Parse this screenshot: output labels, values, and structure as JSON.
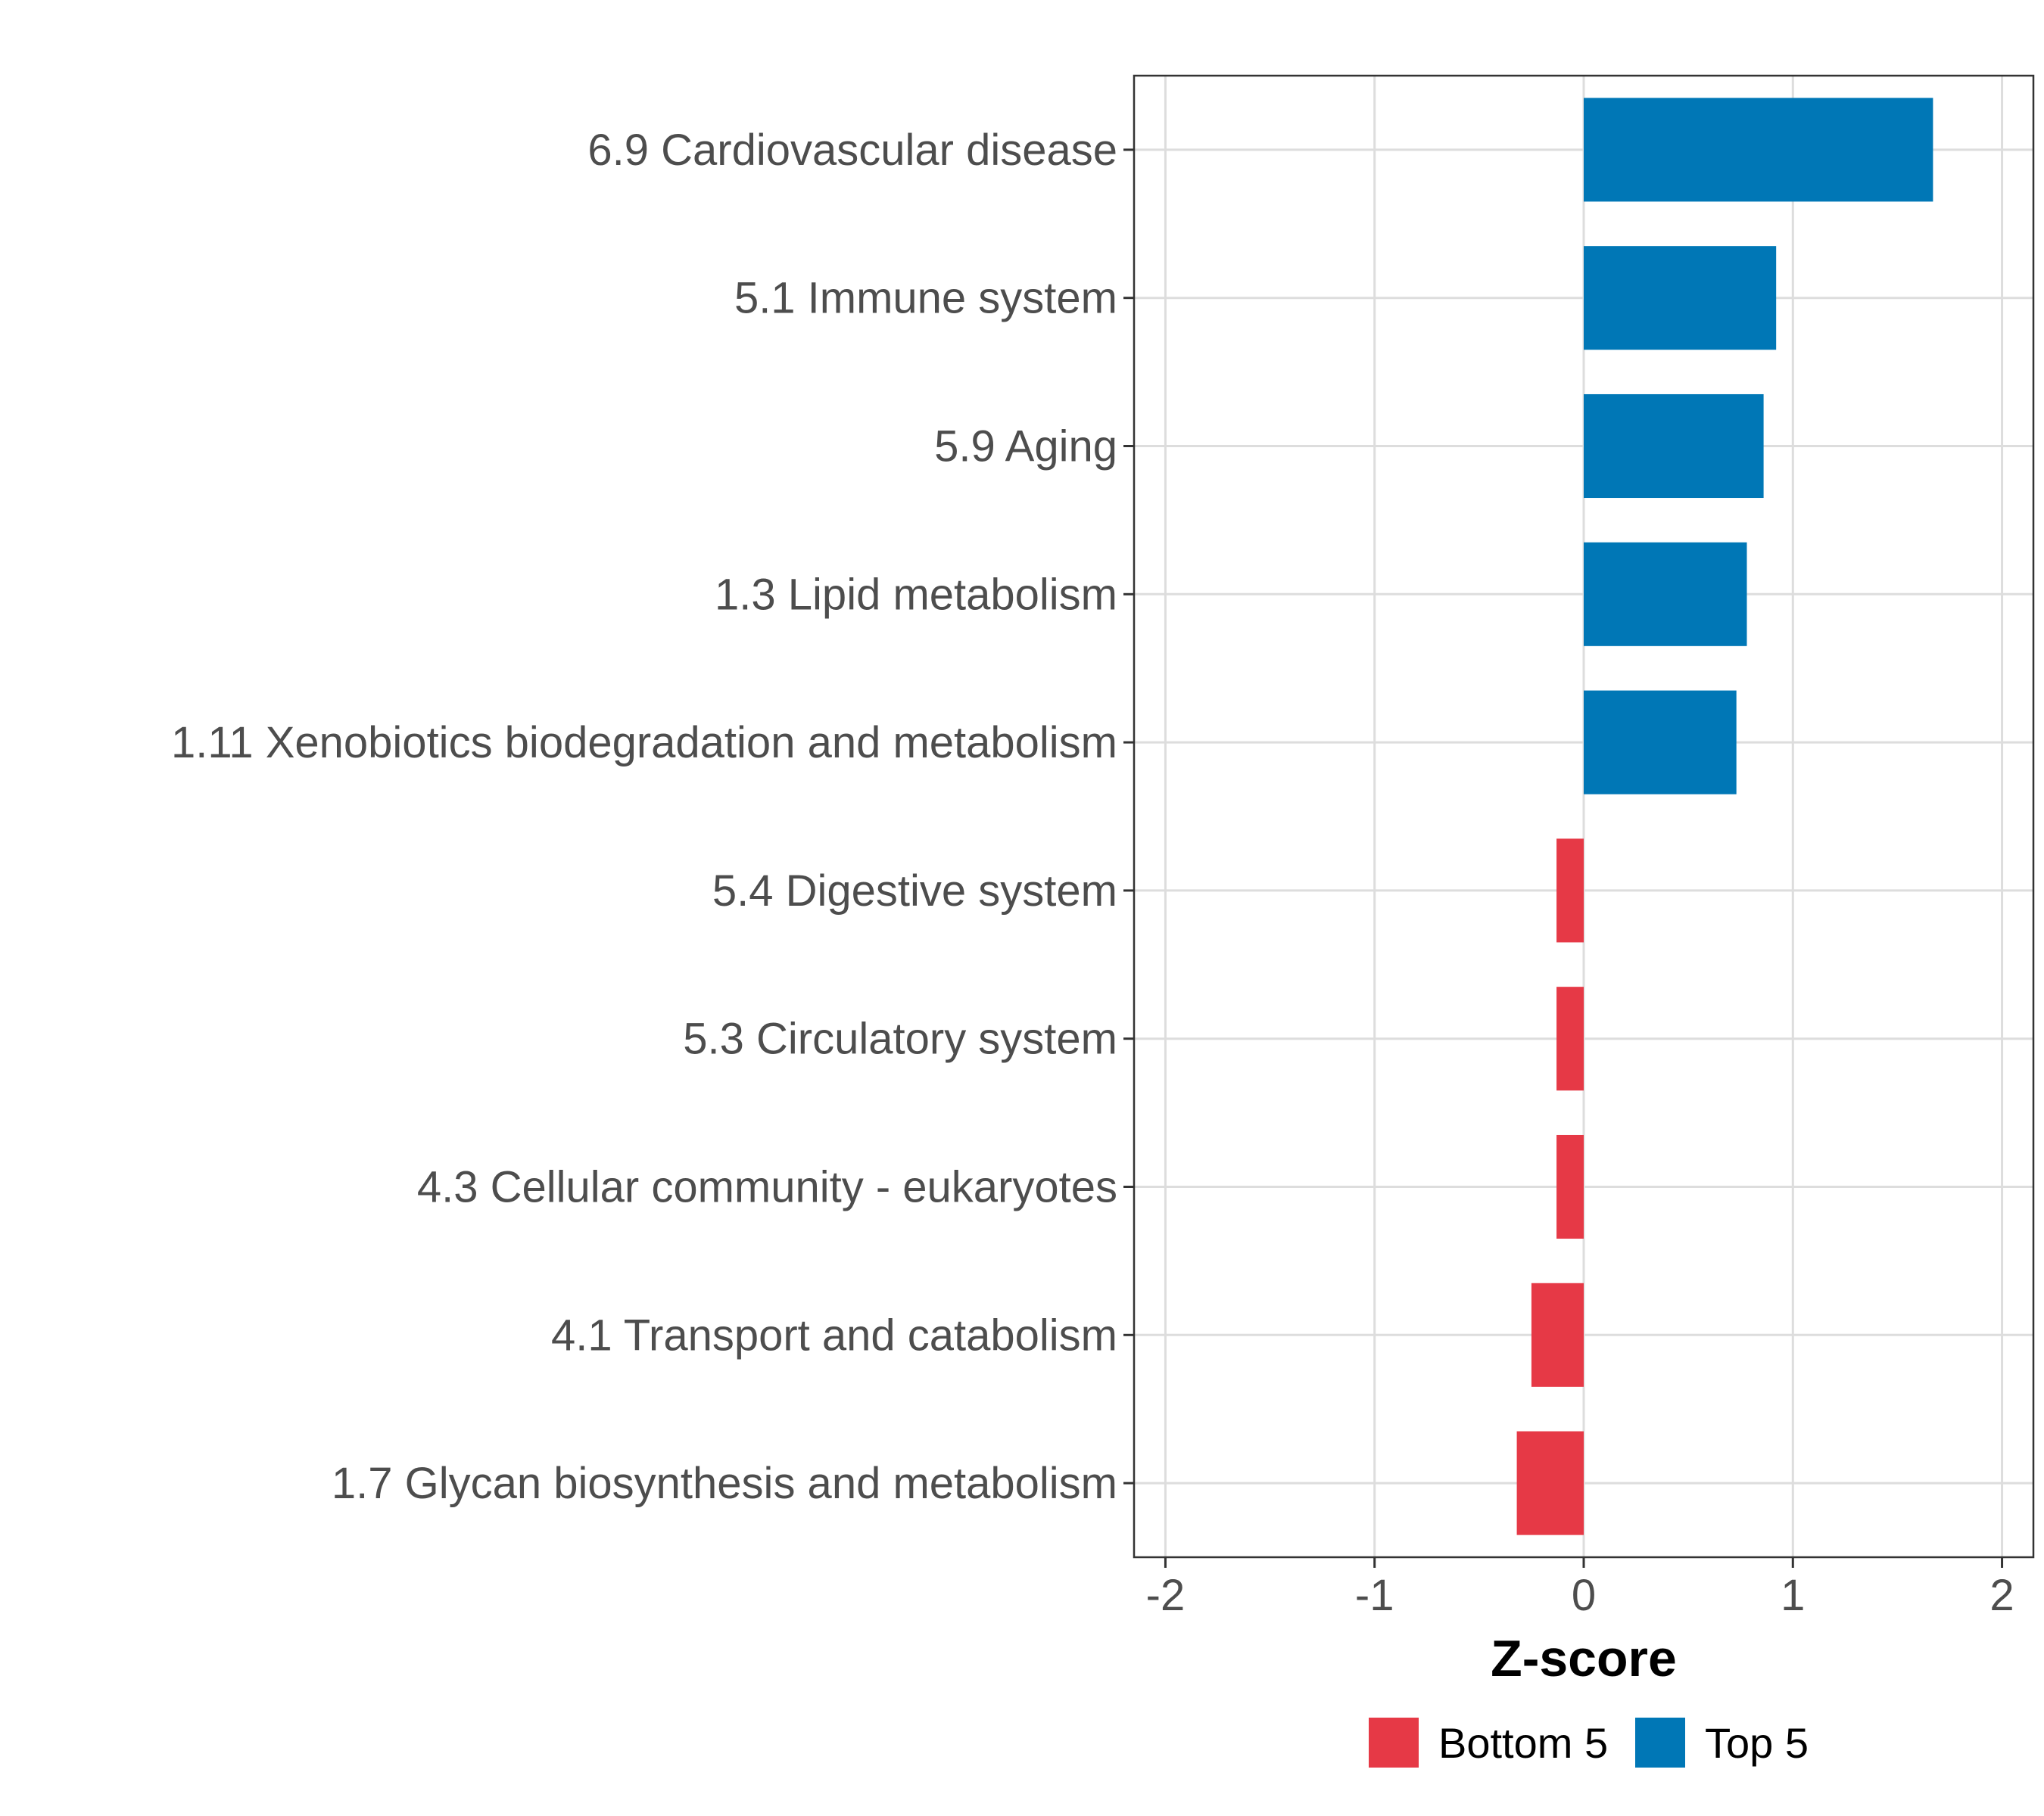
{
  "chart_data": {
    "type": "bar",
    "orientation": "horizontal",
    "title": "",
    "xlabel": "Z-score",
    "ylabel": "",
    "xlim": [
      -2.15,
      2.15
    ],
    "xticks": [
      -2,
      -1,
      0,
      1,
      2
    ],
    "grid": true,
    "legend_position": "bottom",
    "categories": [
      "6.9 Cardiovascular disease",
      "5.1 Immune system",
      "5.9 Aging",
      "1.3 Lipid metabolism",
      "1.11 Xenobiotics biodegradation and metabolism",
      "5.4 Digestive system",
      "5.3 Circulatory system",
      "4.3 Cellular community - eukaryotes",
      "4.1 Transport and catabolism",
      "1.7 Glycan biosynthesis and metabolism"
    ],
    "values": [
      1.67,
      0.92,
      0.86,
      0.78,
      0.73,
      -0.13,
      -0.13,
      -0.13,
      -0.25,
      -0.32
    ],
    "groups": [
      "Top 5",
      "Top 5",
      "Top 5",
      "Top 5",
      "Top 5",
      "Bottom 5",
      "Bottom 5",
      "Bottom 5",
      "Bottom 5",
      "Bottom 5"
    ],
    "legend": [
      {
        "name": "Bottom 5",
        "color": "#E63946"
      },
      {
        "name": "Top 5",
        "color": "#0077B6"
      }
    ]
  }
}
